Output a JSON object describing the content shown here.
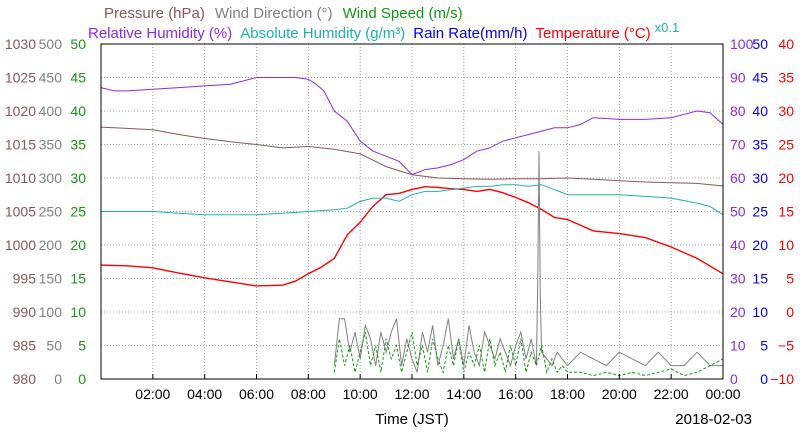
{
  "chart_data": {
    "type": "line",
    "date": "2018-02-03",
    "xlabel": "Time (JST)",
    "x_ticks": [
      "02:00",
      "04:00",
      "06:00",
      "08:00",
      "10:00",
      "12:00",
      "14:00",
      "16:00",
      "18:00",
      "20:00",
      "22:00",
      "00:00"
    ],
    "x_range_hours": [
      0,
      24
    ],
    "grid": true,
    "legend": {
      "row1": [
        {
          "label": "Pressure (hPa)",
          "color": "#8b5656"
        },
        {
          "label": "Wind Direction (°)",
          "color": "#808080"
        },
        {
          "label": "Wind Speed (m/s)",
          "color": "#149614"
        }
      ],
      "row2": [
        {
          "label": "Relative Humidity (%)",
          "color": "#8a2be2"
        },
        {
          "label": "Absolute Humidity (g/m³)",
          "color": "#20b2aa"
        },
        {
          "label": "Rain Rate(mm/h)",
          "color": "#0000ee"
        },
        {
          "label": "Temperature (°C)",
          "color": "#ff0000"
        }
      ],
      "scale_note": {
        "label": "x0.1",
        "color": "#20b2aa"
      }
    },
    "axes": {
      "pressure": {
        "color": "#8b5656",
        "ticks": [
          "1030",
          "1025",
          "1020",
          "1015",
          "1010",
          "1005",
          "1000",
          "995",
          "990",
          "985",
          "980"
        ]
      },
      "wind_direction": {
        "color": "#808080",
        "ticks": [
          "500",
          "450",
          "400",
          "350",
          "300",
          "250",
          "200",
          "150",
          "100",
          "50",
          "0"
        ]
      },
      "wind_speed": {
        "color": "#149614",
        "ticks": [
          "50",
          "45",
          "40",
          "35",
          "30",
          "25",
          "20",
          "15",
          "10",
          "5",
          "0"
        ]
      },
      "humidity": {
        "color": "#8a2be2",
        "ticks": [
          "100",
          "90",
          "80",
          "70",
          "60",
          "50",
          "40",
          "30",
          "20",
          "10",
          "0"
        ]
      },
      "rain": {
        "color": "#0000ee",
        "ticks": [
          "50",
          "45",
          "40",
          "35",
          "30",
          "25",
          "20",
          "15",
          "10",
          "5",
          "0"
        ]
      },
      "temperature": {
        "color": "#ff0000",
        "ticks": [
          "40",
          "35",
          "30",
          "25",
          "20",
          "15",
          "10",
          "5",
          "0",
          "−5",
          "−10"
        ]
      }
    },
    "series": [
      {
        "key": "humidity",
        "color": "#8a2be2",
        "range": [
          0,
          100
        ],
        "x": [
          0,
          0.5,
          1,
          2,
          3,
          4,
          5,
          5.5,
          6,
          7,
          7.5,
          8,
          8.3,
          8.6,
          9,
          9.5,
          10,
          10.5,
          11,
          11.5,
          12,
          12.5,
          13,
          13.5,
          14,
          14.5,
          15,
          15.5,
          16,
          16.5,
          17,
          17.5,
          18,
          18.5,
          19,
          20,
          21,
          22,
          22.5,
          23,
          23.5,
          24
        ],
        "y": [
          87,
          86,
          86,
          86.5,
          87,
          87.5,
          88,
          89,
          90,
          90,
          90,
          89.5,
          88,
          86,
          80,
          77,
          71,
          68,
          66.5,
          65,
          61,
          62.5,
          63,
          64,
          65.5,
          68,
          69,
          71,
          72,
          73,
          74,
          75,
          75,
          76,
          78,
          77.5,
          77.5,
          78,
          79,
          80,
          79.5,
          76
        ]
      },
      {
        "key": "temperature",
        "color": "#ff0000",
        "range": [
          -10,
          40
        ],
        "x": [
          0,
          1,
          2,
          3,
          4,
          5,
          6,
          7,
          7.5,
          8,
          8.5,
          9,
          9.5,
          10,
          10.5,
          11,
          11.5,
          12,
          12.5,
          13,
          13.5,
          14,
          14.5,
          15,
          15.5,
          16,
          16.5,
          17,
          17.5,
          18,
          19,
          20,
          21,
          22,
          23,
          24
        ],
        "y": [
          7,
          6.9,
          6.6,
          5.8,
          5.1,
          4.5,
          3.9,
          4.0,
          4.6,
          5.7,
          6.7,
          8.0,
          11.5,
          13.4,
          15.8,
          17.5,
          17.7,
          18.3,
          18.7,
          18.6,
          18.4,
          18.3,
          18.0,
          18.3,
          17.8,
          17.1,
          16.3,
          15.3,
          14.1,
          13.8,
          12.1,
          11.7,
          11.1,
          9.7,
          8.0,
          5.7
        ]
      },
      {
        "key": "pressure",
        "color": "#8b5656",
        "range": [
          980,
          1030
        ],
        "x": [
          0,
          1,
          2,
          3,
          4,
          5,
          6,
          7,
          8,
          9,
          10,
          11,
          12,
          13,
          14,
          15,
          16,
          17,
          18,
          19,
          20,
          21,
          22,
          23,
          24
        ],
        "y": [
          1017.6,
          1017.4,
          1017.2,
          1016.5,
          1015.9,
          1015.4,
          1015.0,
          1014.5,
          1014.7,
          1014.3,
          1013.6,
          1011.7,
          1010.5,
          1010.0,
          1009.9,
          1009.8,
          1009.9,
          1009.9,
          1010.0,
          1009.8,
          1009.6,
          1009.4,
          1009.3,
          1009.2,
          1008.8
        ]
      },
      {
        "key": "absolute_humidity",
        "color": "#20b2aa",
        "range": [
          0,
          100
        ],
        "x": [
          0,
          1,
          2,
          3,
          4,
          5,
          6,
          7,
          8,
          9,
          9.5,
          10,
          10.5,
          11,
          11.5,
          12,
          12.5,
          13,
          13.5,
          14,
          14.5,
          15,
          15.5,
          16,
          16.5,
          17,
          17.5,
          18,
          19,
          20,
          21,
          22,
          23,
          23.5,
          24
        ],
        "y": [
          50,
          50,
          50,
          49.5,
          49,
          49,
          49,
          49.5,
          50,
          50.5,
          51,
          53,
          54,
          54,
          53,
          55,
          56,
          56,
          56.5,
          57,
          57.5,
          57.5,
          58,
          58,
          57.5,
          58,
          56.5,
          55,
          55,
          55,
          54.5,
          54,
          52.5,
          51.5,
          49
        ]
      },
      {
        "key": "wind_direction",
        "color": "#808080",
        "range": [
          0,
          500
        ],
        "x": [
          9.0,
          9.2,
          9.4,
          9.6,
          9.8,
          10.0,
          10.2,
          10.4,
          10.6,
          10.8,
          11.0,
          11.2,
          11.4,
          11.6,
          11.8,
          12.0,
          12.2,
          12.4,
          12.6,
          12.8,
          13.0,
          13.2,
          13.4,
          13.6,
          13.8,
          14.0,
          14.2,
          14.4,
          14.6,
          14.8,
          15.0,
          15.2,
          15.4,
          15.6,
          15.8,
          16.0,
          16.2,
          16.4,
          16.6,
          16.8,
          16.85,
          16.9,
          16.95,
          17.0,
          17.2,
          17.4,
          17.6,
          17.8,
          18.0,
          18.5,
          19.0,
          19.5,
          20.0,
          20.5,
          21.0,
          21.5,
          22.0,
          22.5,
          23.0,
          23.5,
          24.0
        ],
        "y": [
          20,
          90,
          90,
          40,
          70,
          30,
          80,
          60,
          20,
          70,
          40,
          70,
          90,
          20,
          60,
          30,
          10,
          70,
          40,
          80,
          20,
          50,
          90,
          30,
          60,
          20,
          80,
          40,
          20,
          70,
          50,
          30,
          60,
          40,
          20,
          50,
          70,
          30,
          60,
          20,
          140,
          340,
          120,
          40,
          30,
          20,
          40,
          30,
          20,
          40,
          30,
          20,
          40,
          30,
          20,
          40,
          20,
          20,
          40,
          20,
          20
        ]
      },
      {
        "key": "wind_speed",
        "color": "#149614",
        "range": [
          0,
          50
        ],
        "dashed": true,
        "x": [
          9.0,
          9.2,
          9.4,
          9.6,
          9.8,
          10.0,
          10.2,
          10.4,
          10.6,
          10.8,
          11.0,
          11.2,
          11.4,
          11.6,
          11.8,
          12.0,
          12.2,
          12.4,
          12.6,
          12.8,
          13.0,
          13.2,
          13.4,
          13.6,
          13.8,
          14.0,
          14.2,
          14.4,
          14.6,
          14.8,
          15.0,
          15.2,
          15.4,
          15.6,
          15.8,
          16.0,
          16.2,
          16.4,
          16.6,
          16.8,
          17.0,
          17.2,
          17.4,
          17.6,
          17.8,
          18.0,
          18.5,
          19.0,
          19.5,
          20.0,
          20.5,
          21.0,
          21.5,
          22.0,
          22.5,
          23.0,
          23.5,
          24.0
        ],
        "y": [
          1,
          6,
          2,
          5,
          1,
          4,
          7,
          2,
          5,
          1,
          6,
          3,
          5,
          1,
          4,
          7,
          2,
          5,
          1,
          6,
          3,
          1,
          5,
          2,
          6,
          1,
          4,
          2,
          5,
          1,
          6,
          2,
          4,
          1,
          5,
          2,
          6,
          1,
          4,
          2,
          5,
          1,
          3,
          1,
          2,
          1,
          1,
          0.5,
          1,
          0.5,
          1,
          0.5,
          1,
          1.5,
          0.5,
          1,
          2,
          3
        ]
      }
    ]
  }
}
